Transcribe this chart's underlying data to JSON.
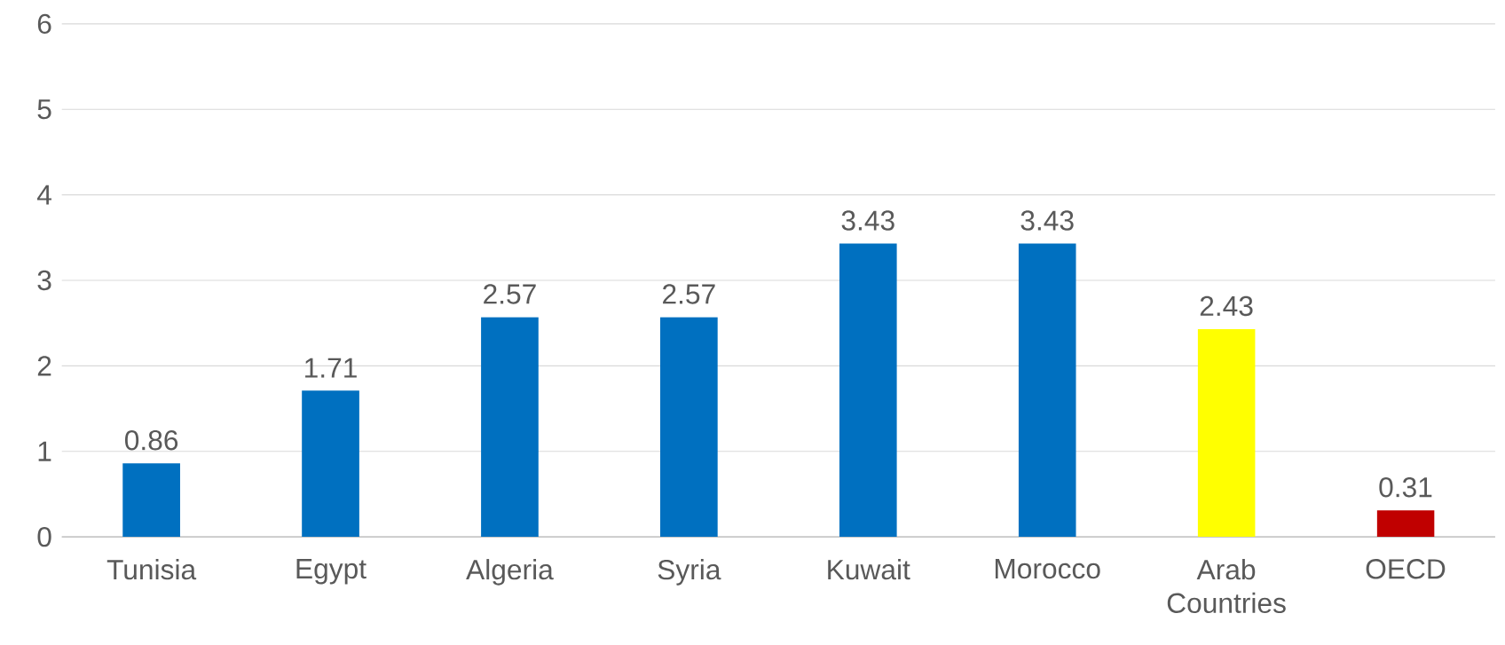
{
  "chart_data": {
    "type": "bar",
    "categories": [
      "Tunisia",
      "Egypt",
      "Algeria",
      "Syria",
      "Kuwait",
      "Morocco",
      "Arab Countries",
      "OECD"
    ],
    "values": [
      0.86,
      1.71,
      2.57,
      2.57,
      3.43,
      3.43,
      2.43,
      0.31
    ],
    "colors": [
      "#0070c0",
      "#0070c0",
      "#0070c0",
      "#0070c0",
      "#0070c0",
      "#0070c0",
      "#ffff00",
      "#c00000"
    ],
    "ylim": [
      0,
      6
    ],
    "yticks": [
      0,
      1,
      2,
      3,
      4,
      5,
      6
    ],
    "grid": "y",
    "data_labels": true
  }
}
